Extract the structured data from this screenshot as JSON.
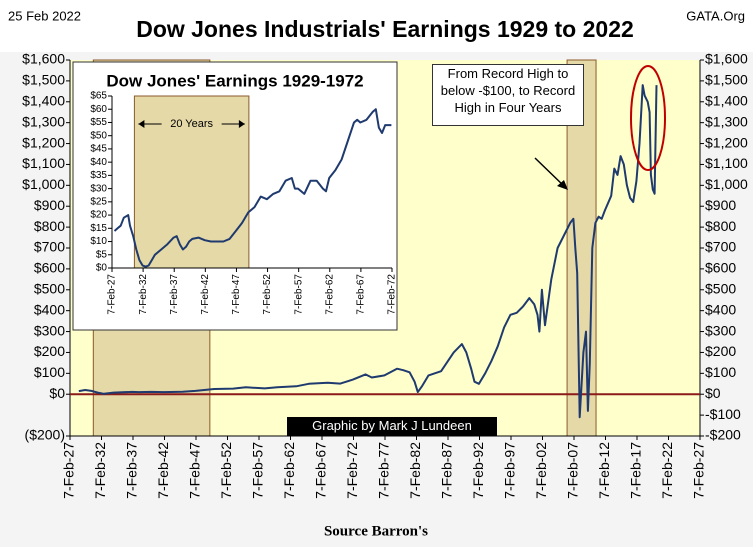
{
  "date": "25 Feb 2022",
  "site": "GATA.Org",
  "footer": "Source Barron's",
  "chart_data": [
    {
      "type": "line",
      "title": "Dow Jones Industrials' Earnings 1929 to 2022",
      "color": "#1f3a6e",
      "background": "#ffffcc",
      "shade_color": "#e6d9a8",
      "zero_line": {
        "value": 0,
        "color": "#8b1a1a"
      },
      "shaded": [
        [
          1930.8,
          1949.3
        ],
        [
          2006.0,
          2010.6
        ]
      ],
      "annotations": [
        "From Record High to below -$100, to Record High in Four Years",
        "Graphic by Mark J Lundeen"
      ],
      "x": [
        1928.5,
        1929.5,
        1930.5,
        1931.5,
        1932.5,
        1934,
        1937,
        1938,
        1940,
        1942,
        1945,
        1947,
        1950,
        1953,
        1955,
        1958,
        1960,
        1963,
        1965,
        1968,
        1970,
        1972,
        1974,
        1975,
        1977,
        1979,
        1980,
        1981,
        1981.8,
        1982.3,
        1983,
        1984,
        1986,
        1988,
        1989.3,
        1990,
        1990.8,
        1991.3,
        1992,
        1993,
        1994,
        1995,
        1996,
        1997,
        1998,
        1999,
        2000,
        2000.8,
        2001.3,
        2001.6,
        2002,
        2002.5,
        2003.5,
        2004.5,
        2005.5,
        2006.5,
        2007,
        2007.3,
        2007.6,
        2008,
        2008.3,
        2008.6,
        2009,
        2009.3,
        2009.6,
        2010,
        2010.5,
        2011,
        2011.5,
        2012,
        2013,
        2013.5,
        2014,
        2014.5,
        2015,
        2015.5,
        2016,
        2016.5,
        2017,
        2017.5,
        2018,
        2018.3,
        2018.8,
        2019.1,
        2019.3,
        2019.6,
        2019.9,
        2020.2
      ],
      "values": [
        15,
        20,
        16,
        8,
        2,
        8,
        11,
        10,
        11,
        10,
        12,
        16,
        25,
        27,
        33,
        28,
        33,
        38,
        50,
        55,
        51,
        70,
        95,
        80,
        90,
        122,
        115,
        105,
        60,
        10,
        40,
        90,
        110,
        200,
        240,
        200,
        120,
        60,
        50,
        100,
        160,
        230,
        320,
        380,
        390,
        420,
        460,
        430,
        380,
        300,
        500,
        330,
        550,
        700,
        760,
        820,
        840,
        700,
        580,
        -110,
        50,
        200,
        300,
        -80,
        150,
        700,
        820,
        850,
        840,
        880,
        950,
        1080,
        1050,
        1140,
        1100,
        1000,
        940,
        920,
        1020,
        1200,
        1480,
        1430,
        1400,
        1350,
        1050,
        980,
        960,
        1480
      ],
      "xlim": [
        1927.1,
        2027.1
      ],
      "xticks": [
        {
          "value": 1927.1,
          "label": "7-Feb-27"
        },
        {
          "value": 1932.1,
          "label": "7-Feb-32"
        },
        {
          "value": 1937.1,
          "label": "7-Feb-37"
        },
        {
          "value": 1942.1,
          "label": "7-Feb-42"
        },
        {
          "value": 1947.1,
          "label": "7-Feb-47"
        },
        {
          "value": 1952.1,
          "label": "7-Feb-52"
        },
        {
          "value": 1957.1,
          "label": "7-Feb-57"
        },
        {
          "value": 1962.1,
          "label": "7-Feb-62"
        },
        {
          "value": 1967.1,
          "label": "7-Feb-67"
        },
        {
          "value": 1972.1,
          "label": "7-Feb-72"
        },
        {
          "value": 1977.1,
          "label": "7-Feb-77"
        },
        {
          "value": 1982.1,
          "label": "7-Feb-82"
        },
        {
          "value": 1987.1,
          "label": "7-Feb-87"
        },
        {
          "value": 1992.1,
          "label": "7-Feb-92"
        },
        {
          "value": 1997.1,
          "label": "7-Feb-97"
        },
        {
          "value": 2002.1,
          "label": "7-Feb-02"
        },
        {
          "value": 2007.1,
          "label": "7-Feb-07"
        },
        {
          "value": 2012.1,
          "label": "7-Feb-12"
        },
        {
          "value": 2017.1,
          "label": "7-Feb-17"
        },
        {
          "value": 2022.1,
          "label": "7-Feb-22"
        },
        {
          "value": 2027.1,
          "label": "7-Feb-27"
        }
      ],
      "ylim": [
        -200,
        1600
      ],
      "yticks": [
        {
          "value": 1600,
          "label": "$1,600"
        },
        {
          "value": 1500,
          "label": "$1,500"
        },
        {
          "value": 1400,
          "label": "$1,400"
        },
        {
          "value": 1300,
          "label": "$1,300"
        },
        {
          "value": 1200,
          "label": "$1,200"
        },
        {
          "value": 1100,
          "label": "$1,100"
        },
        {
          "value": 1000,
          "label": "$1,000"
        },
        {
          "value": 900,
          "label": "$900"
        },
        {
          "value": 800,
          "label": "$800"
        },
        {
          "value": 700,
          "label": "$700"
        },
        {
          "value": 600,
          "label": "$600"
        },
        {
          "value": 500,
          "label": "$500"
        },
        {
          "value": 400,
          "label": "$400"
        },
        {
          "value": 300,
          "label": "$300"
        },
        {
          "value": 200,
          "label": "$200"
        },
        {
          "value": 100,
          "label": "$100"
        },
        {
          "value": 0,
          "label": "$0"
        },
        {
          "value": -200,
          "label": "($200)"
        }
      ],
      "y2lim": [
        -200,
        1600
      ],
      "y2ticks": [
        {
          "value": 1600,
          "label": "$1,600"
        },
        {
          "value": 1500,
          "label": "$1,500"
        },
        {
          "value": 1400,
          "label": "$1,400"
        },
        {
          "value": 1300,
          "label": "$1,300"
        },
        {
          "value": 1200,
          "label": "$1,200"
        },
        {
          "value": 1100,
          "label": "$1,100"
        },
        {
          "value": 1000,
          "label": "$1,000"
        },
        {
          "value": 900,
          "label": "$900"
        },
        {
          "value": 800,
          "label": "$800"
        },
        {
          "value": 700,
          "label": "$700"
        },
        {
          "value": 600,
          "label": "$600"
        },
        {
          "value": 500,
          "label": "$500"
        },
        {
          "value": 400,
          "label": "$400"
        },
        {
          "value": 300,
          "label": "$300"
        },
        {
          "value": 200,
          "label": "$200"
        },
        {
          "value": 100,
          "label": "$100"
        },
        {
          "value": 0,
          "label": "$0"
        },
        {
          "value": -100,
          "label": "-$100"
        },
        {
          "value": -200,
          "label": "-$200"
        }
      ]
    },
    {
      "type": "line",
      "title": "Dow Jones' Earnings 1929-1972",
      "color": "#1f3a6e",
      "background": "#ffffff",
      "shade_color": "#e6d9a8",
      "shaded": [
        [
          1930.7,
          1949.1
        ]
      ],
      "annotations": [
        "20 Years"
      ],
      "x": [
        1927.5,
        1928,
        1928.5,
        1929,
        1929.7,
        1930,
        1930.5,
        1931,
        1931.5,
        1932,
        1932.5,
        1933,
        1933.5,
        1934,
        1935,
        1936,
        1937,
        1937.5,
        1938,
        1938.5,
        1939,
        1939.5,
        1940,
        1941,
        1942,
        1943,
        1944,
        1945,
        1946,
        1947,
        1948,
        1949,
        1950,
        1951,
        1952,
        1953,
        1954,
        1955,
        1956,
        1956.5,
        1957,
        1958,
        1959,
        1960,
        1961,
        1961.5,
        1962,
        1963,
        1964,
        1965,
        1966,
        1966.5,
        1967,
        1968,
        1969,
        1969.5,
        1970,
        1970.5,
        1971,
        1972
      ],
      "values": [
        14,
        15,
        16,
        19,
        20,
        16,
        12,
        7,
        3,
        1,
        0.5,
        1,
        3,
        5,
        7,
        9,
        11.5,
        12,
        9,
        7,
        8,
        10,
        11,
        11.5,
        10.5,
        10,
        10,
        10,
        11,
        14,
        17,
        21,
        23,
        27,
        26,
        28,
        29,
        33,
        34,
        30,
        30,
        28,
        33,
        33,
        30,
        29,
        34,
        37,
        41,
        48,
        55,
        56,
        55,
        56,
        59,
        60,
        53,
        51,
        54,
        54
      ],
      "xlim": [
        1927.1,
        1972.1
      ],
      "xticks": [
        {
          "value": 1927.1,
          "label": "7-Feb-27"
        },
        {
          "value": 1932.1,
          "label": "7-Feb-32"
        },
        {
          "value": 1937.1,
          "label": "7-Feb-37"
        },
        {
          "value": 1942.1,
          "label": "7-Feb-42"
        },
        {
          "value": 1947.1,
          "label": "7-Feb-47"
        },
        {
          "value": 1952.1,
          "label": "7-Feb-52"
        },
        {
          "value": 1957.1,
          "label": "7-Feb-57"
        },
        {
          "value": 1962.1,
          "label": "7-Feb-62"
        },
        {
          "value": 1967.1,
          "label": "7-Feb-67"
        },
        {
          "value": 1972.1,
          "label": "7-Feb-72"
        }
      ],
      "ylim": [
        0,
        65
      ],
      "yticks": [
        {
          "value": 65,
          "label": "$65"
        },
        {
          "value": 60,
          "label": "$60"
        },
        {
          "value": 55,
          "label": "$55"
        },
        {
          "value": 50,
          "label": "$50"
        },
        {
          "value": 45,
          "label": "$45"
        },
        {
          "value": 40,
          "label": "$40"
        },
        {
          "value": 35,
          "label": "$35"
        },
        {
          "value": 30,
          "label": "$30"
        },
        {
          "value": 25,
          "label": "$25"
        },
        {
          "value": 20,
          "label": "$20"
        },
        {
          "value": 15,
          "label": "$15"
        },
        {
          "value": 10,
          "label": "$10"
        },
        {
          "value": 5,
          "label": "$5"
        },
        {
          "value": 0,
          "label": "$0"
        }
      ]
    }
  ]
}
